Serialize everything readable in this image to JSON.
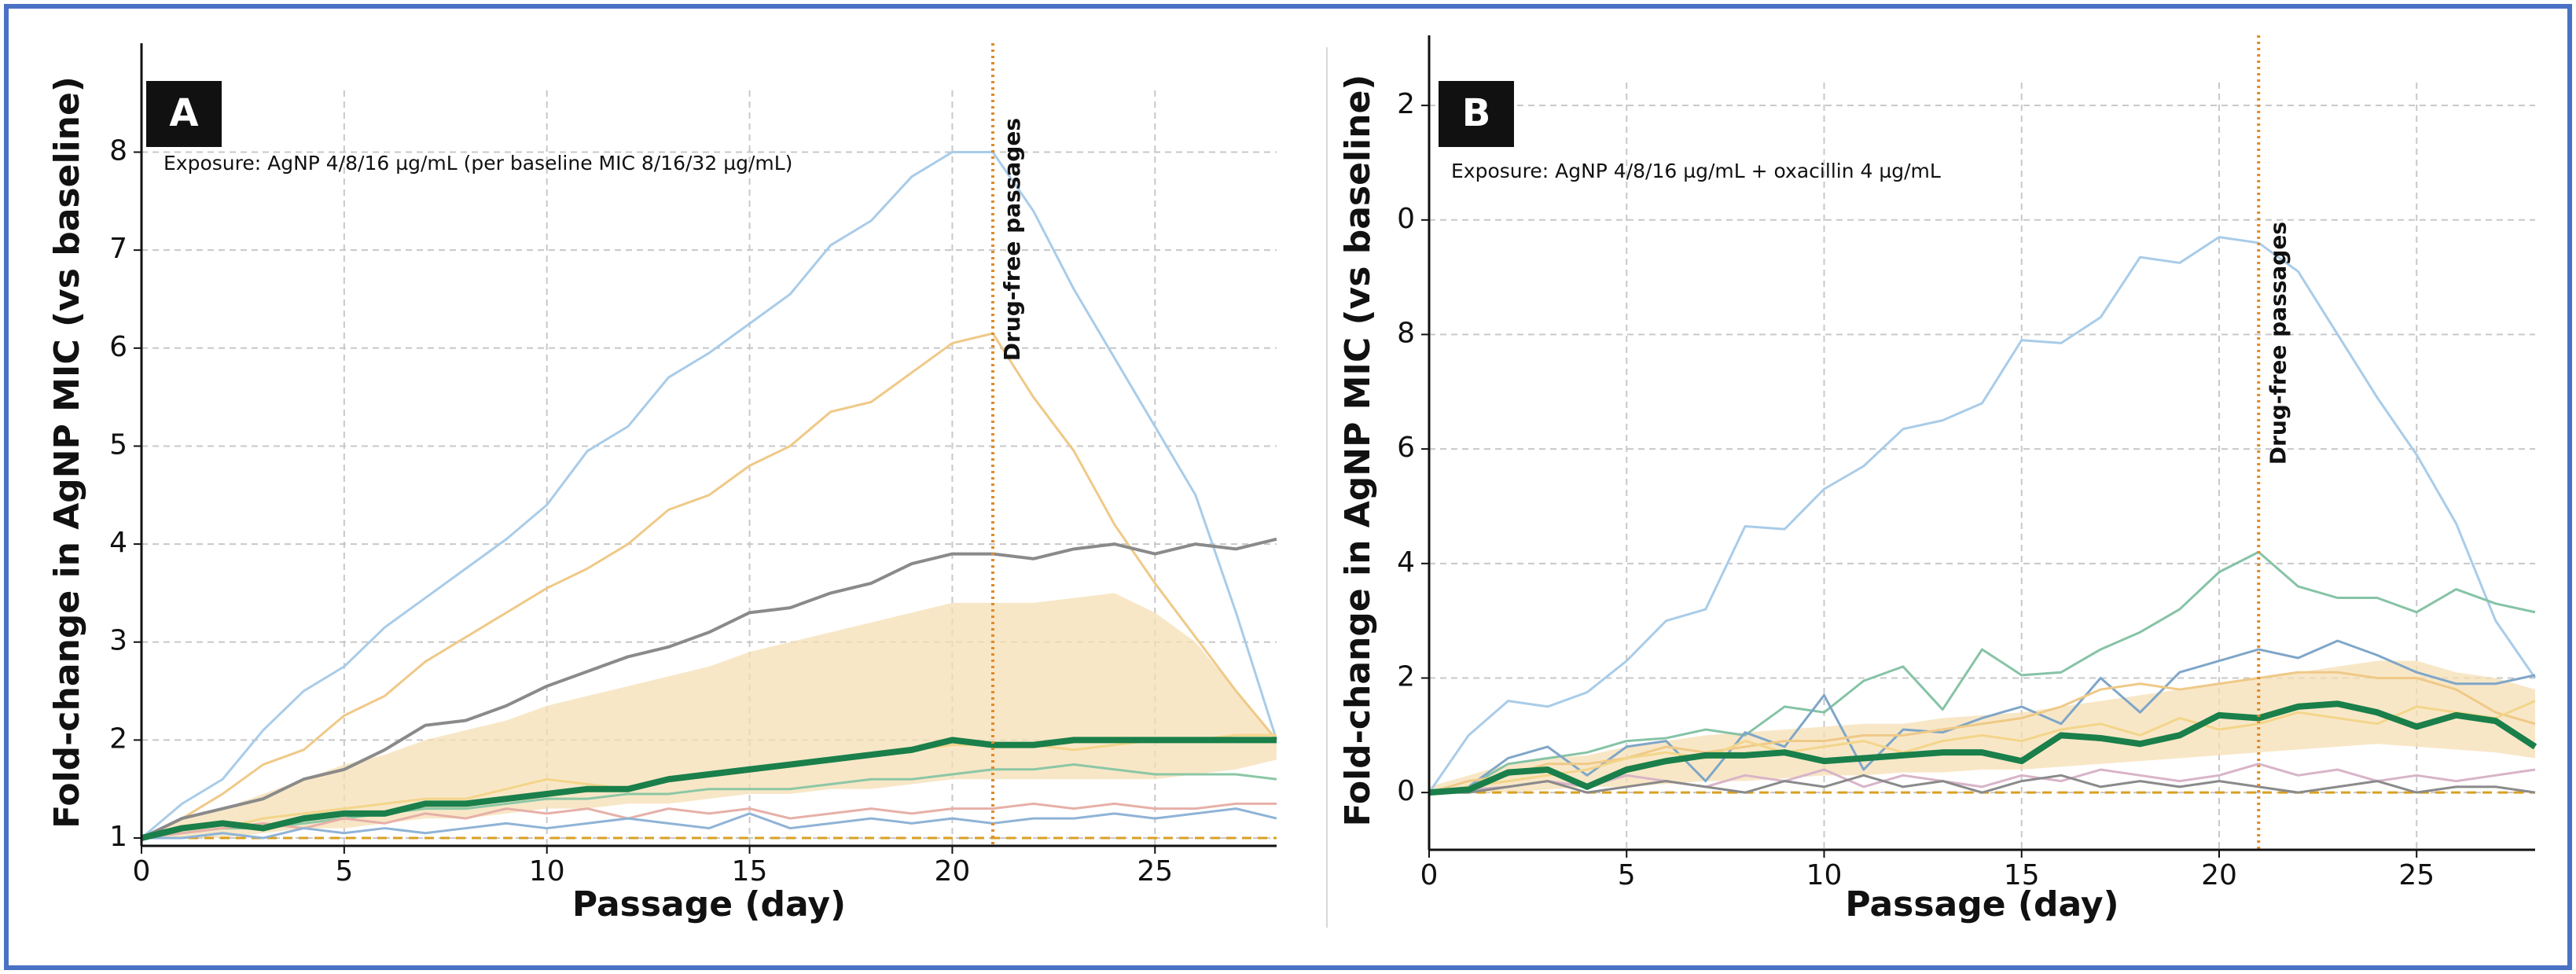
{
  "chart_data": [
    {
      "type": "line",
      "panel_label": "A",
      "annotation": "Exposure: AgNP 4/8/16 µg/mL (per baseline MIC 8/16/32 µg/mL)",
      "xlabel": "Passage (day)",
      "ylabel": "Fold-change in AgNP MIC (vs baseline)",
      "x": [
        0,
        1,
        2,
        3,
        4,
        5,
        6,
        7,
        8,
        9,
        10,
        11,
        12,
        13,
        14,
        15,
        16,
        17,
        18,
        19,
        20,
        21,
        22,
        23,
        24,
        25,
        26,
        27,
        28
      ],
      "xlim": [
        0,
        28
      ],
      "xticks": [
        0,
        5,
        10,
        15,
        20,
        25
      ],
      "ylim": [
        0.92,
        8.63
      ],
      "yticks": [
        1,
        2,
        3,
        4,
        5,
        6,
        7,
        8
      ],
      "grid": true,
      "baseline": 1,
      "baseline_color": "#d9a020",
      "vline": {
        "x": 21,
        "label": "Drug-free passages",
        "color": "#e08a2a"
      },
      "band": {
        "color": "#f6dfb4",
        "upper": [
          1,
          1.2,
          1.3,
          1.45,
          1.6,
          1.75,
          1.85,
          2.0,
          2.1,
          2.2,
          2.35,
          2.45,
          2.55,
          2.65,
          2.75,
          2.9,
          3.0,
          3.1,
          3.2,
          3.3,
          3.4,
          3.4,
          3.4,
          3.45,
          3.5,
          3.3,
          3.0,
          2.5,
          2.0
        ],
        "lower": [
          1,
          1.0,
          1.0,
          1.05,
          1.1,
          1.1,
          1.15,
          1.2,
          1.2,
          1.25,
          1.3,
          1.3,
          1.35,
          1.35,
          1.4,
          1.45,
          1.45,
          1.5,
          1.5,
          1.55,
          1.6,
          1.6,
          1.6,
          1.6,
          1.6,
          1.6,
          1.65,
          1.7,
          1.8
        ]
      },
      "series": [
        {
          "color": "#a9cce8",
          "linewidth": 3,
          "values": [
            1,
            1.35,
            1.6,
            2.1,
            2.5,
            2.75,
            3.15,
            3.45,
            3.75,
            4.05,
            4.4,
            4.95,
            5.2,
            5.7,
            5.95,
            6.25,
            6.55,
            7.05,
            7.3,
            7.75,
            8.0,
            8.0,
            7.4,
            6.6,
            5.9,
            5.2,
            4.5,
            3.3,
            2.0
          ]
        },
        {
          "color": "#efc987",
          "linewidth": 3,
          "values": [
            1,
            1.2,
            1.45,
            1.75,
            1.9,
            2.25,
            2.45,
            2.8,
            3.05,
            3.3,
            3.55,
            3.75,
            4.0,
            4.35,
            4.5,
            4.8,
            5.0,
            5.35,
            5.45,
            5.75,
            6.05,
            6.15,
            5.5,
            4.95,
            4.2,
            3.6,
            3.05,
            2.5,
            2.0
          ]
        },
        {
          "color": "#8a8a8a",
          "linewidth": 4,
          "values": [
            1,
            1.2,
            1.3,
            1.4,
            1.6,
            1.7,
            1.9,
            2.15,
            2.2,
            2.35,
            2.55,
            2.7,
            2.85,
            2.95,
            3.1,
            3.3,
            3.35,
            3.5,
            3.6,
            3.8,
            3.9,
            3.9,
            3.85,
            3.95,
            4.0,
            3.9,
            4.0,
            3.95,
            4.05
          ]
        },
        {
          "color": "#f3d58a",
          "linewidth": 3,
          "values": [
            1,
            1.05,
            1.1,
            1.2,
            1.25,
            1.3,
            1.35,
            1.4,
            1.4,
            1.5,
            1.6,
            1.55,
            1.5,
            1.6,
            1.65,
            1.7,
            1.75,
            1.8,
            1.85,
            1.9,
            1.95,
            1.95,
            1.95,
            1.9,
            1.95,
            2.0,
            2.0,
            2.05,
            2.05
          ]
        },
        {
          "color": "#8cc7a5",
          "linewidth": 3,
          "values": [
            1,
            1.05,
            1.1,
            1.1,
            1.15,
            1.2,
            1.25,
            1.3,
            1.3,
            1.35,
            1.4,
            1.4,
            1.45,
            1.45,
            1.5,
            1.5,
            1.5,
            1.55,
            1.6,
            1.6,
            1.65,
            1.7,
            1.7,
            1.75,
            1.7,
            1.65,
            1.65,
            1.65,
            1.6
          ]
        },
        {
          "color": "#e6b0a8",
          "linewidth": 3,
          "values": [
            1,
            1.05,
            1.1,
            1.15,
            1.1,
            1.2,
            1.15,
            1.25,
            1.2,
            1.3,
            1.25,
            1.3,
            1.2,
            1.3,
            1.25,
            1.3,
            1.2,
            1.25,
            1.3,
            1.25,
            1.3,
            1.3,
            1.35,
            1.3,
            1.35,
            1.3,
            1.3,
            1.35,
            1.35
          ]
        },
        {
          "color": "#8fb3d6",
          "linewidth": 3,
          "values": [
            1,
            1.0,
            1.05,
            1.0,
            1.1,
            1.05,
            1.1,
            1.05,
            1.1,
            1.15,
            1.1,
            1.15,
            1.2,
            1.15,
            1.1,
            1.25,
            1.1,
            1.15,
            1.2,
            1.15,
            1.2,
            1.15,
            1.2,
            1.2,
            1.25,
            1.2,
            1.25,
            1.3,
            1.2
          ]
        },
        {
          "color": "#1a7f4a",
          "linewidth": 8,
          "values": [
            1,
            1.1,
            1.15,
            1.1,
            1.2,
            1.25,
            1.25,
            1.35,
            1.35,
            1.4,
            1.45,
            1.5,
            1.5,
            1.6,
            1.65,
            1.7,
            1.75,
            1.8,
            1.85,
            1.9,
            2.0,
            1.95,
            1.95,
            2.0,
            2.0,
            2.0,
            2.0,
            2.0,
            2.0
          ]
        }
      ]
    },
    {
      "type": "line",
      "panel_label": "B",
      "annotation": "Exposure: AgNP 4/8/16 µg/mL + oxacillin 4 µg/mL",
      "xlabel": "Passage (day)",
      "ylabel": "Fold-change in AgNP MIC (vs baseline)",
      "x": [
        0,
        1,
        2,
        3,
        4,
        5,
        6,
        7,
        8,
        9,
        10,
        11,
        12,
        13,
        14,
        15,
        16,
        17,
        18,
        19,
        20,
        21,
        22,
        23,
        24,
        25,
        26,
        27,
        28
      ],
      "xlim": [
        0,
        28
      ],
      "xticks": [
        0,
        5,
        10,
        15,
        20,
        25
      ],
      "ylim": [
        -1,
        12.4
      ],
      "yticks": [
        0,
        2,
        4,
        6,
        8,
        {
          "value": 10,
          "label": "0"
        },
        {
          "value": 12,
          "label": "2"
        }
      ],
      "grid": true,
      "baseline": 0,
      "baseline_color": "#d9a020",
      "vline": {
        "x": 21,
        "label": "Drug-free passages",
        "color": "#e08a2a"
      },
      "band": {
        "color": "#f6dfb4",
        "upper": [
          0.1,
          0.3,
          0.5,
          0.6,
          0.65,
          0.8,
          0.9,
          1.0,
          1.05,
          1.1,
          1.15,
          1.2,
          1.2,
          1.3,
          1.35,
          1.4,
          1.5,
          1.6,
          1.7,
          1.8,
          1.9,
          2.0,
          2.1,
          2.2,
          2.3,
          2.3,
          2.1,
          2.0,
          1.8
        ],
        "lower": [
          0,
          0,
          0,
          0.05,
          0.1,
          0.1,
          0.15,
          0.2,
          0.2,
          0.25,
          0.3,
          0.3,
          0.35,
          0.35,
          0.4,
          0.4,
          0.45,
          0.5,
          0.55,
          0.6,
          0.65,
          0.7,
          0.75,
          0.8,
          0.85,
          0.8,
          0.75,
          0.7,
          0.6
        ]
      },
      "series": [
        {
          "color": "#a9cce8",
          "linewidth": 3,
          "values": [
            0,
            1.0,
            1.6,
            1.5,
            1.75,
            2.3,
            3.0,
            3.2,
            4.65,
            4.6,
            5.3,
            5.7,
            6.35,
            6.5,
            6.8,
            7.9,
            7.85,
            8.3,
            9.35,
            9.25,
            9.7,
            9.6,
            9.1,
            8.0,
            6.9,
            5.9,
            4.7,
            3.0,
            2.0
          ]
        },
        {
          "color": "#86c3a6",
          "linewidth": 3,
          "values": [
            0,
            0.1,
            0.5,
            0.6,
            0.7,
            0.9,
            0.95,
            1.1,
            1.0,
            1.5,
            1.4,
            1.95,
            2.2,
            1.45,
            2.5,
            2.05,
            2.1,
            2.5,
            2.8,
            3.2,
            3.85,
            4.2,
            3.6,
            3.4,
            3.4,
            3.15,
            3.55,
            3.3,
            3.15
          ]
        },
        {
          "color": "#7fa6c8",
          "linewidth": 3,
          "values": [
            0,
            0.1,
            0.6,
            0.8,
            0.3,
            0.8,
            0.9,
            0.2,
            1.05,
            0.8,
            1.7,
            0.4,
            1.1,
            1.05,
            1.3,
            1.5,
            1.2,
            2.0,
            1.4,
            2.1,
            2.3,
            2.5,
            2.35,
            2.65,
            2.4,
            2.1,
            1.9,
            1.9,
            2.05
          ]
        },
        {
          "color": "#efc987",
          "linewidth": 3,
          "values": [
            0,
            0.2,
            0.3,
            0.5,
            0.5,
            0.6,
            0.8,
            0.7,
            0.8,
            0.9,
            0.9,
            1.0,
            1.0,
            1.1,
            1.2,
            1.3,
            1.5,
            1.8,
            1.9,
            1.8,
            1.9,
            2.0,
            2.1,
            2.1,
            2.0,
            2.0,
            1.8,
            1.4,
            1.2
          ]
        },
        {
          "color": "#f3d58a",
          "linewidth": 3,
          "values": [
            0,
            0.1,
            0.2,
            0.3,
            0.4,
            0.6,
            0.7,
            0.6,
            0.9,
            0.7,
            0.8,
            0.9,
            0.7,
            0.9,
            1.0,
            0.9,
            1.1,
            1.2,
            1.0,
            1.3,
            1.1,
            1.2,
            1.4,
            1.3,
            1.2,
            1.5,
            1.4,
            1.3,
            1.6
          ]
        },
        {
          "color": "#d8b4c8",
          "linewidth": 3,
          "values": [
            0,
            0.05,
            0.1,
            0.2,
            0.1,
            0.3,
            0.2,
            0.1,
            0.3,
            0.2,
            0.4,
            0.1,
            0.3,
            0.2,
            0.1,
            0.3,
            0.2,
            0.4,
            0.3,
            0.2,
            0.3,
            0.5,
            0.3,
            0.4,
            0.2,
            0.3,
            0.2,
            0.3,
            0.4
          ]
        },
        {
          "color": "#8a8a8a",
          "linewidth": 3,
          "values": [
            0,
            0,
            0.1,
            0.2,
            0,
            0.1,
            0.2,
            0.1,
            0,
            0.2,
            0.1,
            0.3,
            0.1,
            0.2,
            0,
            0.2,
            0.3,
            0.1,
            0.2,
            0.1,
            0.2,
            0.1,
            0,
            0.1,
            0.2,
            0,
            0.1,
            0.1,
            0
          ]
        },
        {
          "color": "#1a7f4a",
          "linewidth": 8,
          "values": [
            0,
            0.05,
            0.35,
            0.4,
            0.1,
            0.4,
            0.55,
            0.65,
            0.65,
            0.7,
            0.55,
            0.6,
            0.65,
            0.7,
            0.7,
            0.55,
            1.0,
            0.95,
            0.85,
            1.0,
            1.35,
            1.3,
            1.5,
            1.55,
            1.4,
            1.15,
            1.35,
            1.25,
            0.8
          ]
        }
      ]
    }
  ]
}
